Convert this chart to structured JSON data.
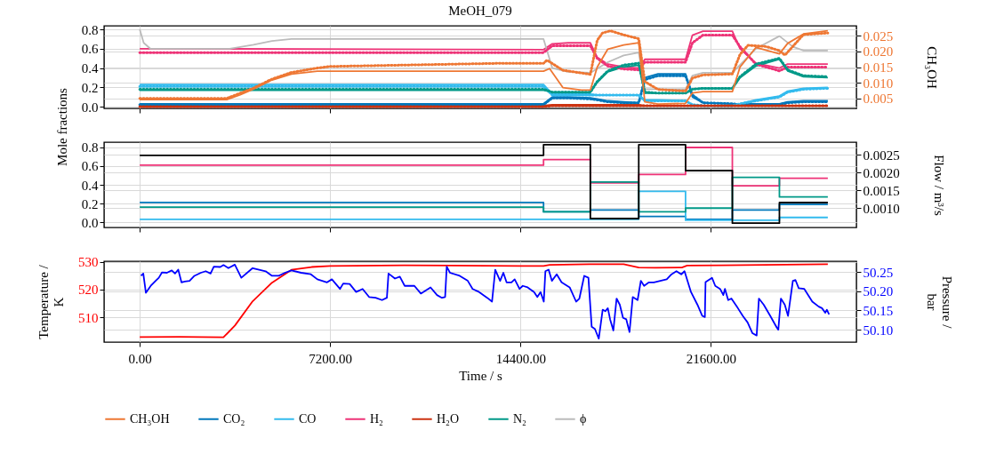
{
  "chart_data": [
    {
      "type": "line",
      "title": "MeOH_079",
      "ylabel": "Mole fractions",
      "y2label": "CH₃OH",
      "xlim": [
        -1350,
        27100
      ],
      "xticks": [
        0,
        7200,
        14400,
        21600
      ],
      "ylim": [
        -0.018,
        0.837
      ],
      "yticks": [
        {
          "value": 0,
          "label": "0.0"
        },
        0.2,
        0.4,
        0.6,
        0.8
      ],
      "y2lim": [
        0.0019,
        0.0281
      ],
      "y2ticks": [
        0.005,
        {
          "value": 0.01,
          "label": "0.010"
        },
        0.015,
        {
          "value": 0.02,
          "label": "0.020"
        },
        0.025
      ],
      "grid": true,
      "legend": "bottom",
      "tick_labels": "y",
      "x": [
        0,
        15270,
        15600,
        16200,
        17040,
        17300,
        17700,
        18300,
        18870,
        19100,
        19600,
        20640,
        20900,
        21300,
        22410,
        22700,
        23300,
        24190,
        24500,
        25100,
        26020
      ],
      "series": [
        {
          "name": "CH₃OH",
          "color": "#ee7733",
          "axis": "y2",
          "x": [
            0,
            1500,
            3290,
            3800,
            4270,
            5003,
            5737,
            6716,
            7200,
            13660,
            15270,
            15500,
            16000,
            16700,
            17040,
            17300,
            17700,
            18300,
            18870,
            19100,
            19600,
            20640,
            20900,
            21300,
            22410,
            22700,
            23300,
            24190,
            24500,
            25100,
            26020
          ],
          "values": [
            0.0047,
            0.0047,
            0.0047,
            0.0062,
            0.0079,
            0.0109,
            0.0128,
            0.0137,
            0.0137,
            0.0137,
            0.0137,
            0.0145,
            0.0085,
            0.0077,
            0.0077,
            0.015,
            0.0207,
            0.022,
            0.0227,
            0.004,
            0.0033,
            0.0035,
            0.0068,
            0.0072,
            0.0072,
            0.015,
            0.0212,
            0.0192,
            0.0225,
            0.0255,
            0.0265
          ]
        },
        {
          "name": "CO₂",
          "color": "#0077bb",
          "values": [
            0.03,
            0.03,
            0.1,
            0.1,
            0.09,
            0.08,
            0.06,
            0.05,
            0.04,
            0.3,
            0.34,
            0.34,
            0.1,
            0.04,
            0.03,
            0.03,
            0.03,
            0.03,
            0.05,
            0.06,
            0.06
          ]
        },
        {
          "name": "CO",
          "color": "#33bbee",
          "values": [
            0.23,
            0.23,
            0.13,
            0.13,
            0.13,
            0.12,
            0.12,
            0.12,
            0.12,
            0.07,
            0.07,
            0.06,
            0.02,
            0.01,
            0.01,
            0.03,
            0.07,
            0.11,
            0.16,
            0.19,
            0.2
          ]
        },
        {
          "name": "H₂",
          "color": "#ee3377",
          "values": [
            0.6,
            0.59,
            0.65,
            0.66,
            0.66,
            0.51,
            0.44,
            0.41,
            0.4,
            0.49,
            0.49,
            0.49,
            0.74,
            0.78,
            0.78,
            0.6,
            0.45,
            0.4,
            0.44,
            0.44,
            0.44
          ]
        },
        {
          "name": "H₂O",
          "color": "#cc3311",
          "values": [
            0.01,
            0.01,
            0.02,
            0.02,
            0.02,
            0.02,
            0.02,
            0.02,
            0.02,
            0.01,
            0.01,
            0.01,
            0.01,
            0.01,
            0.01,
            0.01,
            0.01,
            0.01,
            0.01,
            0.01,
            0.01
          ]
        },
        {
          "name": "N₂",
          "color": "#009988",
          "values": [
            0.17,
            0.17,
            0.15,
            0.15,
            0.15,
            0.25,
            0.36,
            0.41,
            0.43,
            0.14,
            0.14,
            0.14,
            0.18,
            0.19,
            0.19,
            0.3,
            0.42,
            0.49,
            0.37,
            0.31,
            0.3
          ]
        },
        {
          "name": "ϕ",
          "color": "#bbbbbb",
          "x": [
            0,
            150,
            400,
            3400,
            4300,
            5000,
            5737,
            7200,
            15270,
            15600,
            16200,
            17040,
            17700,
            18300,
            18870,
            19100,
            19600,
            20640,
            20900,
            21300,
            22410,
            23300,
            24190,
            24700,
            25100,
            26020
          ],
          "values": [
            0.8,
            0.66,
            0.6,
            0.6,
            0.64,
            0.68,
            0.7,
            0.7,
            0.7,
            0.4,
            0.36,
            0.35,
            0.46,
            0.53,
            0.56,
            0.18,
            0.18,
            0.18,
            0.32,
            0.35,
            0.35,
            0.6,
            0.73,
            0.62,
            0.58,
            0.58
          ]
        },
        {
          "color": "#ee7733",
          "axis": "y2",
          "line_style": "dotted",
          "x": [
            0,
            3290,
            4270,
            5003,
            5737,
            6716,
            7200,
            13660,
            15270,
            15400,
            16000,
            17040,
            17300,
            17500,
            17800,
            18300,
            18870,
            19100,
            19600,
            20640,
            20900,
            21300,
            22410,
            22700,
            23000,
            23700,
            24190,
            24400,
            25100,
            26020
          ],
          "values": [
            0.0051,
            0.0051,
            0.0082,
            0.0112,
            0.0133,
            0.0147,
            0.0152,
            0.0162,
            0.0162,
            0.0172,
            0.014,
            0.0127,
            0.0235,
            0.0258,
            0.0265,
            0.0252,
            0.024,
            0.0104,
            0.0079,
            0.0074,
            0.0115,
            0.0125,
            0.0128,
            0.019,
            0.0219,
            0.0215,
            0.0202,
            0.0188,
            0.0253,
            0.0258
          ]
        },
        {
          "color": "#0077bb",
          "line_style": "dotted",
          "values": [
            0.02,
            0.02,
            0.09,
            0.09,
            0.08,
            0.07,
            0.05,
            0.04,
            0.04,
            0.28,
            0.32,
            0.32,
            0.12,
            0.04,
            0.03,
            0.02,
            0.02,
            0.02,
            0.04,
            0.05,
            0.05
          ]
        },
        {
          "color": "#33bbee",
          "line_style": "dotted",
          "values": [
            0.21,
            0.21,
            0.12,
            0.12,
            0.12,
            0.12,
            0.12,
            0.12,
            0.12,
            0.06,
            0.06,
            0.06,
            0.02,
            0.01,
            0.01,
            0.03,
            0.06,
            0.1,
            0.15,
            0.18,
            0.19
          ]
        },
        {
          "color": "#ee3377",
          "line_style": "dotted",
          "values": [
            0.56,
            0.56,
            0.63,
            0.63,
            0.63,
            0.5,
            0.42,
            0.39,
            0.38,
            0.46,
            0.46,
            0.46,
            0.66,
            0.74,
            0.74,
            0.62,
            0.44,
            0.37,
            0.41,
            0.41,
            0.41
          ]
        },
        {
          "color": "#cc3311",
          "line_style": "dotted",
          "values": [
            0.0,
            0.0,
            0.01,
            0.01,
            0.01,
            0.01,
            0.01,
            0.01,
            0.01,
            0.01,
            0.01,
            0.01,
            0.01,
            0.01,
            0.01,
            0.01,
            0.01,
            0.01,
            0.01,
            0.01,
            0.01
          ]
        },
        {
          "color": "#009988",
          "line_style": "dotted",
          "values": [
            0.18,
            0.18,
            0.15,
            0.15,
            0.15,
            0.26,
            0.37,
            0.43,
            0.45,
            0.15,
            0.14,
            0.14,
            0.18,
            0.19,
            0.19,
            0.31,
            0.44,
            0.5,
            0.38,
            0.32,
            0.31
          ]
        }
      ]
    },
    {
      "type": "step",
      "y2label": "Flow / m³/s",
      "xlim": [
        -1350,
        27100
      ],
      "xticks": [
        0,
        7200,
        14400,
        21600
      ],
      "ylim": [
        -0.057,
        0.857
      ],
      "yticks": [
        {
          "value": 0,
          "label": "0.0"
        },
        0.2,
        0.4,
        0.6,
        0.8
      ],
      "y2lim": [
        0.00045,
        0.00285
      ],
      "y2ticks": [
        {
          "value": 0.001,
          "label": "0.0010"
        },
        0.0015,
        {
          "value": 0.002,
          "label": "0.0020"
        },
        0.0025
      ],
      "grid": true,
      "tick_labels": "y",
      "x": [
        0,
        15270,
        17040,
        18870,
        20640,
        22410,
        24190,
        26020
      ],
      "series": [
        {
          "color": "#ee3377",
          "values": [
            0.61,
            0.67,
            0.42,
            0.51,
            0.8,
            0.39,
            0.47,
            0.47
          ]
        },
        {
          "color": "#0077bb",
          "values": [
            0.21,
            0.11,
            0.13,
            0.06,
            0.03,
            0.13,
            0.19,
            0.19
          ]
        },
        {
          "color": "#33bbee",
          "values": [
            0.03,
            0.03,
            0.03,
            0.33,
            0.02,
            0.02,
            0.05,
            0.05
          ]
        },
        {
          "color": "#009988",
          "values": [
            0.16,
            0.11,
            0.43,
            0.11,
            0.15,
            0.48,
            0.27,
            0.27
          ]
        },
        {
          "color": "#000000",
          "axis": "y2",
          "values": [
            0.00248,
            0.00278,
            0.0007,
            0.00278,
            0.00205,
            0.00057,
            0.00115,
            0.00115
          ]
        }
      ]
    },
    {
      "type": "line",
      "xlabel": "Time / s",
      "ylabel": "Temperature / K",
      "y2label": "Pressure / bar",
      "xlim": [
        -1350,
        27100
      ],
      "xticks": [
        {
          "value": 0,
          "label": "0.00"
        },
        {
          "value": 7200,
          "label": "7200.00"
        },
        {
          "value": 14400,
          "label": "14400.00"
        },
        {
          "value": 21600,
          "label": "21600.00"
        }
      ],
      "ylim": [
        501,
        530.3
      ],
      "yticks": [
        510,
        520,
        530
      ],
      "y2lim": [
        50.068,
        50.278
      ],
      "y2ticks": [
        {
          "value": 50.1,
          "label": "50.10"
        },
        50.15,
        {
          "value": 50.2,
          "label": "50.20"
        },
        50.25
      ],
      "grid": true,
      "series": [
        {
          "color": "#ff0000",
          "x": [
            0,
            1500,
            3165,
            3600,
            4270,
            5000,
            5736,
            6500,
            7200,
            10000,
            14400,
            15270,
            15500,
            17000,
            18300,
            18870,
            19500,
            20500,
            20700,
            22000,
            26020
          ],
          "values": [
            502.8,
            502.9,
            502.7,
            507,
            515.8,
            522.5,
            527.2,
            528.2,
            528.6,
            528.8,
            528.6,
            528.6,
            529,
            529.2,
            529.2,
            528,
            527.9,
            528,
            528.7,
            528.8,
            529.2
          ]
        },
        {
          "color": "#0000ff",
          "axis": "y2",
          "x": [
            49,
            134,
            233,
            416,
            600,
            722,
            844,
            1028,
            1211,
            1333,
            1456,
            1578,
            1700,
            1884,
            2068,
            2312,
            2495,
            2679,
            2801,
            3046,
            3168,
            3352,
            3596,
            3841,
            4269,
            4759,
            5003,
            5248,
            5492,
            5737,
            6104,
            6471,
            6716,
            7083,
            7266,
            7572,
            7694,
            7939,
            8183,
            8428,
            8673,
            8917,
            9162,
            9346,
            9407,
            9651,
            9835,
            10019,
            10386,
            10630,
            10997,
            11242,
            11426,
            11548,
            11609,
            11732,
            12099,
            12405,
            12588,
            12833,
            13139,
            13322,
            13444,
            13628,
            13750,
            13872,
            14056,
            14178,
            14362,
            14484,
            14668,
            14912,
            15035,
            15157,
            15279,
            15340,
            15463,
            15585,
            15768,
            15952,
            16258,
            16502,
            16625,
            16808,
            16967,
            17090,
            17212,
            17359,
            17506,
            17604,
            17701,
            17787,
            17910,
            18032,
            18154,
            18276,
            18399,
            18521,
            18643,
            18827,
            18949,
            19072,
            19255,
            19439,
            19683,
            19928,
            20111,
            20295,
            20478,
            20601,
            20845,
            21090,
            21273,
            21371,
            21396,
            21640,
            21763,
            21946,
            22069,
            22130,
            22252,
            22374,
            22619,
            22803,
            22986,
            23170,
            23329,
            23414,
            23597,
            23842,
            24086,
            24148,
            24246,
            24393,
            24515,
            24698,
            24797,
            24919,
            25130,
            25433,
            25677,
            25800,
            25922,
            25983,
            26069
          ],
          "values": [
            50.24,
            50.246,
            50.196,
            50.214,
            50.227,
            50.235,
            50.249,
            50.248,
            50.254,
            50.246,
            50.256,
            50.223,
            50.225,
            50.227,
            50.24,
            50.248,
            50.252,
            50.246,
            50.264,
            50.263,
            50.268,
            50.26,
            50.269,
            50.235,
            50.26,
            50.252,
            50.24,
            50.24,
            50.248,
            50.254,
            50.248,
            50.244,
            50.231,
            50.223,
            50.231,
            50.206,
            50.22,
            50.219,
            50.198,
            50.206,
            50.185,
            50.183,
            50.177,
            50.183,
            50.246,
            50.233,
            50.238,
            50.214,
            50.214,
            50.194,
            50.21,
            50.19,
            50.183,
            50.185,
            50.264,
            50.248,
            50.24,
            50.227,
            50.206,
            50.198,
            50.183,
            50.173,
            50.256,
            50.227,
            50.248,
            50.223,
            50.223,
            50.231,
            50.206,
            50.214,
            50.21,
            50.198,
            50.185,
            50.198,
            50.173,
            50.252,
            50.256,
            50.227,
            50.244,
            50.223,
            50.21,
            50.173,
            50.181,
            50.24,
            50.235,
            50.108,
            50.102,
            50.077,
            50.152,
            50.148,
            50.156,
            50.127,
            50.098,
            50.181,
            50.165,
            50.131,
            50.127,
            50.094,
            50.185,
            50.177,
            50.227,
            50.214,
            50.223,
            50.223,
            50.227,
            50.231,
            50.244,
            50.252,
            50.244,
            50.252,
            50.198,
            50.165,
            50.136,
            50.133,
            50.224,
            50.235,
            50.214,
            50.206,
            50.19,
            50.206,
            50.177,
            50.181,
            50.156,
            50.136,
            50.119,
            50.091,
            50.085,
            50.181,
            50.165,
            50.136,
            50.106,
            50.1,
            50.181,
            50.165,
            50.136,
            50.227,
            50.229,
            50.208,
            50.206,
            50.173,
            50.16,
            50.156,
            50.144,
            50.152,
            50.14
          ]
        }
      ]
    }
  ]
}
